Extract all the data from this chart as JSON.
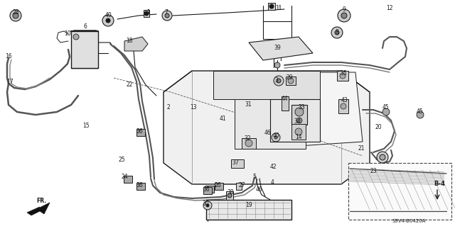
{
  "background_color": "#ffffff",
  "line_color": "#1a1a1a",
  "diagram_code": "S9V4-B0420A",
  "ref_code": "B-4",
  "figsize": [
    6.4,
    3.19
  ],
  "dpi": 100
}
